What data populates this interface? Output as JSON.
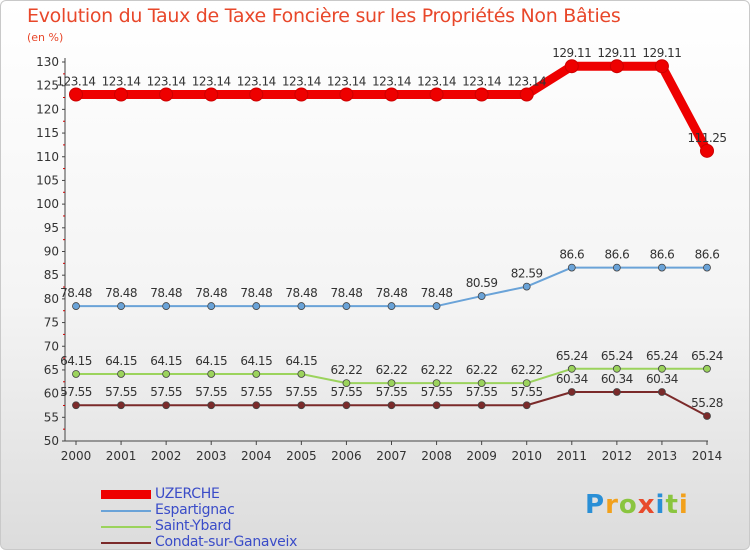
{
  "chart_data": {
    "type": "line",
    "title": "Evolution du Taux de Taxe Foncière sur les Propriétés Non Bâties",
    "unit_label": "(en %)",
    "x": [
      "2000",
      "2001",
      "2002",
      "2003",
      "2004",
      "2005",
      "2006",
      "2007",
      "2008",
      "2009",
      "2010",
      "2011",
      "2012",
      "2013",
      "2014"
    ],
    "yticks": [
      "50",
      "55",
      "60",
      "65",
      "70",
      "75",
      "80",
      "85",
      "90",
      "95",
      "100",
      "105",
      "110",
      "115",
      "120",
      "125",
      "130"
    ],
    "ylim": [
      50,
      130
    ],
    "grid": false,
    "legend_position": "bottom-left",
    "series": [
      {
        "name": "UZERCHE",
        "color": "#ee0000",
        "values": [
          123.14,
          123.14,
          123.14,
          123.14,
          123.14,
          123.14,
          123.14,
          123.14,
          123.14,
          123.14,
          123.14,
          129.11,
          129.11,
          129.11,
          111.25
        ],
        "labels": [
          "123.14",
          "123.14",
          "123.14",
          "123.14",
          "123.14",
          "123.14",
          "123.14",
          "123.14",
          "123.14",
          "123.14",
          "123.14",
          "129.11",
          "129.11",
          "129.11",
          "111.25"
        ]
      },
      {
        "name": "Espartignac",
        "color": "#6aa3d8",
        "values": [
          78.48,
          78.48,
          78.48,
          78.48,
          78.48,
          78.48,
          78.48,
          78.48,
          78.48,
          80.59,
          82.59,
          86.6,
          86.6,
          86.6,
          86.6
        ],
        "labels": [
          "78.48",
          "78.48",
          "78.48",
          "78.48",
          "78.48",
          "78.48",
          "78.48",
          "78.48",
          "78.48",
          "80.59",
          "82.59",
          "86.6",
          "86.6",
          "86.6",
          "86.6"
        ]
      },
      {
        "name": "Saint-Ybard",
        "color": "#9bd35c",
        "values": [
          64.15,
          64.15,
          64.15,
          64.15,
          64.15,
          64.15,
          62.22,
          62.22,
          62.22,
          62.22,
          62.22,
          65.24,
          65.24,
          65.24,
          65.24
        ],
        "labels": [
          "64.15",
          "64.15",
          "64.15",
          "64.15",
          "64.15",
          "64.15",
          "62.22",
          "62.22",
          "62.22",
          "62.22",
          "62.22",
          "65.24",
          "65.24",
          "65.24",
          "65.24"
        ]
      },
      {
        "name": "Condat-sur-Ganaveix",
        "color": "#7b2a2a",
        "values": [
          57.55,
          57.55,
          57.55,
          57.55,
          57.55,
          57.55,
          57.55,
          57.55,
          57.55,
          57.55,
          57.55,
          60.34,
          60.34,
          60.34,
          55.28
        ],
        "labels": [
          "57.55",
          "57.55",
          "57.55",
          "57.55",
          "57.55",
          "57.55",
          "57.55",
          "57.55",
          "57.55",
          "57.55",
          "57.55",
          "60.34",
          "60.34",
          "60.34",
          "55.28"
        ]
      }
    ]
  },
  "branding": {
    "logo_text": [
      "P",
      "r",
      "o",
      "x",
      "i",
      "t",
      "i"
    ],
    "logo_colors": [
      "#2a8fd6",
      "#f2a11c",
      "#8ac53f",
      "#e84a2b",
      "#2a8fd6",
      "#8ac53f",
      "#f2a11c"
    ]
  }
}
